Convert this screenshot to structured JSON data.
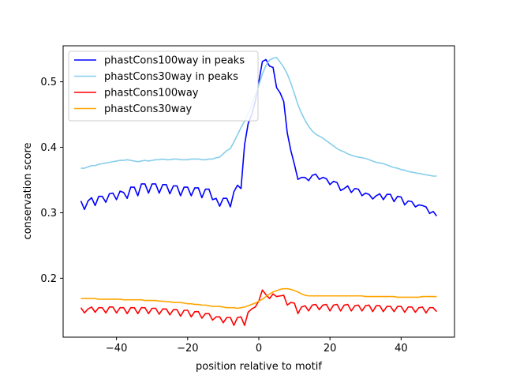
{
  "chart_data": {
    "type": "line",
    "title": "",
    "xlabel": "position relative to motif",
    "ylabel": "conservation score",
    "xlim": [
      -55,
      55
    ],
    "ylim": [
      0.11,
      0.555
    ],
    "xticks": [
      -40,
      -20,
      0,
      20,
      40
    ],
    "xtick_labels": [
      "−40",
      "−20",
      "0",
      "20",
      "40"
    ],
    "yticks": [
      0.2,
      0.3,
      0.4,
      0.5
    ],
    "ytick_labels": [
      "0.2",
      "0.3",
      "0.4",
      "0.5"
    ],
    "legend_position": "top-left",
    "x": [
      -50,
      -49,
      -48,
      -47,
      -46,
      -45,
      -44,
      -43,
      -42,
      -41,
      -40,
      -39,
      -38,
      -37,
      -36,
      -35,
      -34,
      -33,
      -32,
      -31,
      -30,
      -29,
      -28,
      -27,
      -26,
      -25,
      -24,
      -23,
      -22,
      -21,
      -20,
      -19,
      -18,
      -17,
      -16,
      -15,
      -14,
      -13,
      -12,
      -11,
      -10,
      -9,
      -8,
      -7,
      -6,
      -5,
      -4,
      -3,
      -2,
      -1,
      0,
      1,
      2,
      3,
      4,
      5,
      6,
      7,
      8,
      9,
      10,
      11,
      12,
      13,
      14,
      15,
      16,
      17,
      18,
      19,
      20,
      21,
      22,
      23,
      24,
      25,
      26,
      27,
      28,
      29,
      30,
      31,
      32,
      33,
      34,
      35,
      36,
      37,
      38,
      39,
      40,
      41,
      42,
      43,
      44,
      45,
      46,
      47,
      48,
      49,
      50
    ],
    "series": [
      {
        "name": "phastCons100way in peaks",
        "color": "#0000ff",
        "values": [
          0.318,
          0.305,
          0.318,
          0.323,
          0.311,
          0.325,
          0.325,
          0.316,
          0.329,
          0.33,
          0.32,
          0.333,
          0.331,
          0.322,
          0.339,
          0.339,
          0.326,
          0.344,
          0.344,
          0.33,
          0.344,
          0.344,
          0.33,
          0.343,
          0.343,
          0.329,
          0.341,
          0.341,
          0.326,
          0.339,
          0.339,
          0.326,
          0.338,
          0.338,
          0.323,
          0.336,
          0.336,
          0.32,
          0.322,
          0.31,
          0.322,
          0.322,
          0.309,
          0.332,
          0.342,
          0.337,
          0.404,
          0.436,
          0.45,
          0.47,
          0.5,
          0.531,
          0.534,
          0.524,
          0.522,
          0.491,
          0.483,
          0.47,
          0.422,
          0.395,
          0.374,
          0.351,
          0.354,
          0.354,
          0.349,
          0.357,
          0.359,
          0.351,
          0.354,
          0.352,
          0.343,
          0.348,
          0.346,
          0.334,
          0.337,
          0.341,
          0.331,
          0.337,
          0.336,
          0.326,
          0.33,
          0.328,
          0.321,
          0.326,
          0.329,
          0.32,
          0.328,
          0.328,
          0.317,
          0.325,
          0.324,
          0.312,
          0.318,
          0.317,
          0.309,
          0.312,
          0.311,
          0.309,
          0.299,
          0.302,
          0.295
        ]
      },
      {
        "name": "phastCons30way in peaks",
        "color": "#87ceeb",
        "values": [
          0.368,
          0.368,
          0.37,
          0.372,
          0.372,
          0.374,
          0.375,
          0.376,
          0.377,
          0.378,
          0.379,
          0.38,
          0.38,
          0.381,
          0.38,
          0.379,
          0.378,
          0.379,
          0.38,
          0.379,
          0.38,
          0.381,
          0.381,
          0.382,
          0.381,
          0.381,
          0.382,
          0.382,
          0.381,
          0.381,
          0.381,
          0.382,
          0.382,
          0.382,
          0.381,
          0.381,
          0.382,
          0.382,
          0.384,
          0.385,
          0.39,
          0.395,
          0.398,
          0.408,
          0.419,
          0.43,
          0.44,
          0.452,
          0.465,
          0.48,
          0.495,
          0.512,
          0.525,
          0.533,
          0.536,
          0.537,
          0.53,
          0.522,
          0.512,
          0.498,
          0.482,
          0.465,
          0.452,
          0.441,
          0.432,
          0.425,
          0.42,
          0.417,
          0.414,
          0.41,
          0.406,
          0.402,
          0.398,
          0.395,
          0.393,
          0.39,
          0.388,
          0.386,
          0.385,
          0.384,
          0.383,
          0.381,
          0.379,
          0.377,
          0.376,
          0.375,
          0.373,
          0.371,
          0.369,
          0.368,
          0.366,
          0.365,
          0.363,
          0.362,
          0.361,
          0.36,
          0.359,
          0.358,
          0.357,
          0.356,
          0.356
        ]
      },
      {
        "name": "phastCons100way",
        "color": "#ff0000",
        "values": [
          0.155,
          0.147,
          0.153,
          0.156,
          0.148,
          0.155,
          0.155,
          0.147,
          0.156,
          0.156,
          0.147,
          0.155,
          0.155,
          0.146,
          0.155,
          0.155,
          0.146,
          0.155,
          0.155,
          0.146,
          0.154,
          0.154,
          0.145,
          0.153,
          0.153,
          0.144,
          0.152,
          0.152,
          0.142,
          0.151,
          0.151,
          0.141,
          0.149,
          0.149,
          0.139,
          0.146,
          0.146,
          0.136,
          0.141,
          0.141,
          0.132,
          0.14,
          0.14,
          0.128,
          0.14,
          0.141,
          0.128,
          0.148,
          0.153,
          0.156,
          0.165,
          0.182,
          0.175,
          0.169,
          0.176,
          0.172,
          0.173,
          0.174,
          0.159,
          0.163,
          0.162,
          0.146,
          0.156,
          0.158,
          0.15,
          0.159,
          0.16,
          0.152,
          0.159,
          0.16,
          0.15,
          0.159,
          0.16,
          0.15,
          0.159,
          0.16,
          0.15,
          0.158,
          0.159,
          0.15,
          0.158,
          0.159,
          0.149,
          0.158,
          0.158,
          0.149,
          0.157,
          0.157,
          0.149,
          0.157,
          0.157,
          0.148,
          0.156,
          0.156,
          0.148,
          0.155,
          0.156,
          0.147,
          0.155,
          0.155,
          0.149
        ]
      },
      {
        "name": "phastCons30way",
        "color": "#ffa500",
        "values": [
          0.169,
          0.169,
          0.169,
          0.169,
          0.169,
          0.168,
          0.168,
          0.168,
          0.168,
          0.168,
          0.168,
          0.168,
          0.167,
          0.167,
          0.167,
          0.167,
          0.167,
          0.167,
          0.166,
          0.166,
          0.166,
          0.166,
          0.165,
          0.165,
          0.164,
          0.164,
          0.163,
          0.163,
          0.163,
          0.162,
          0.161,
          0.161,
          0.16,
          0.16,
          0.159,
          0.159,
          0.158,
          0.157,
          0.157,
          0.157,
          0.156,
          0.155,
          0.155,
          0.155,
          0.154,
          0.155,
          0.156,
          0.158,
          0.16,
          0.162,
          0.165,
          0.168,
          0.172,
          0.176,
          0.179,
          0.181,
          0.183,
          0.184,
          0.184,
          0.183,
          0.181,
          0.179,
          0.176,
          0.174,
          0.173,
          0.173,
          0.173,
          0.173,
          0.173,
          0.173,
          0.173,
          0.173,
          0.173,
          0.173,
          0.173,
          0.173,
          0.173,
          0.173,
          0.173,
          0.173,
          0.172,
          0.172,
          0.172,
          0.172,
          0.172,
          0.172,
          0.172,
          0.172,
          0.172,
          0.171,
          0.171,
          0.171,
          0.171,
          0.171,
          0.171,
          0.171,
          0.172,
          0.172,
          0.172,
          0.172,
          0.172
        ]
      }
    ]
  }
}
